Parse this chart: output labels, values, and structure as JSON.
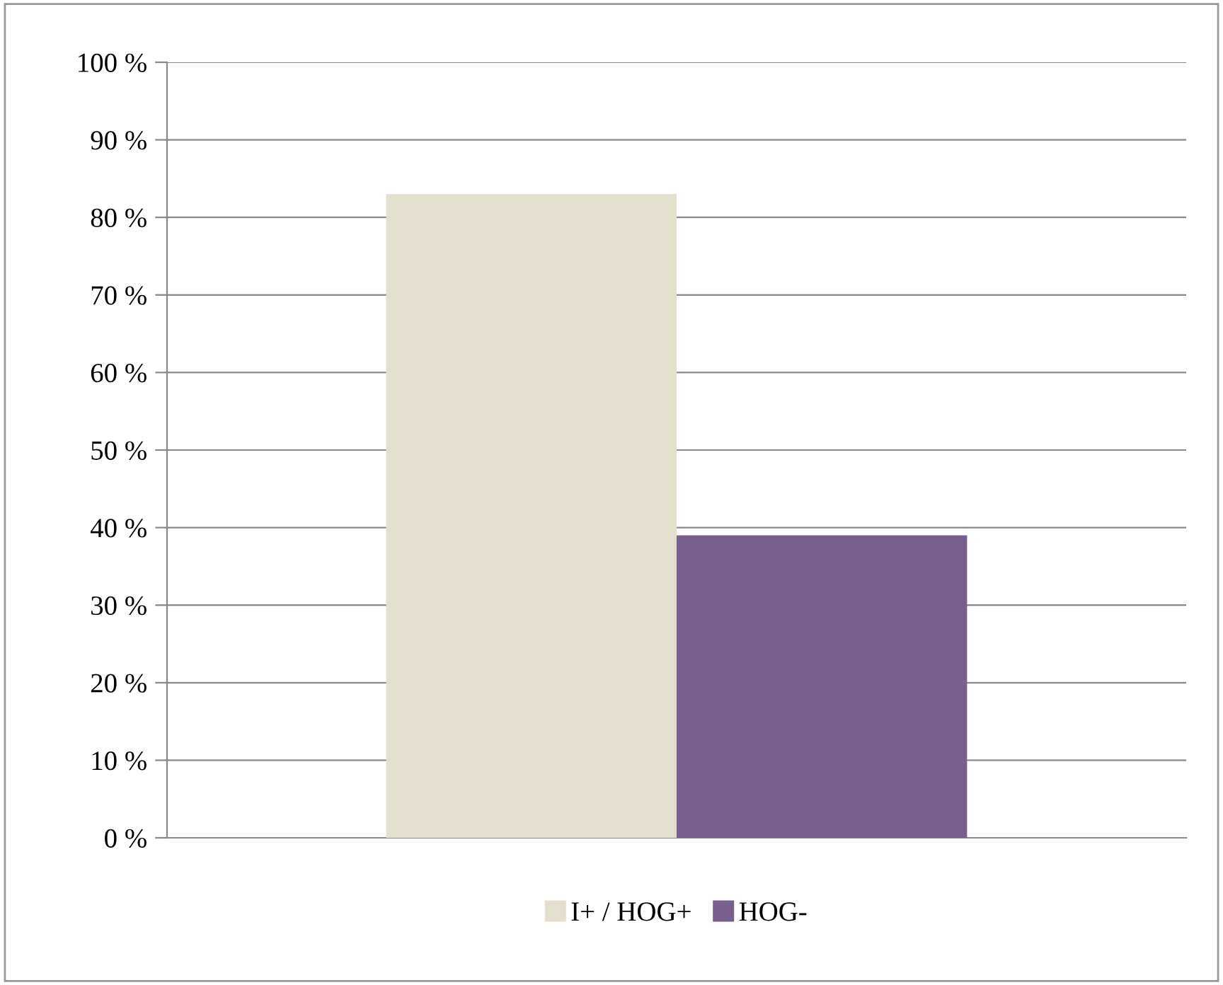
{
  "chart_data": {
    "type": "bar",
    "categories": [
      null
    ],
    "series": [
      {
        "name": "I+ / HOG+",
        "color": "#e2dfcc",
        "values": [
          83
        ]
      },
      {
        "name": "HOG-",
        "color": "#77608e",
        "values": [
          39
        ]
      }
    ],
    "ylim": [
      0,
      100
    ],
    "yticks": [
      {
        "value": 0,
        "label": "0 %"
      },
      {
        "value": 10,
        "label": "10 %"
      },
      {
        "value": 20,
        "label": "20 %"
      },
      {
        "value": 30,
        "label": "30 %"
      },
      {
        "value": 40,
        "label": "40 %"
      },
      {
        "value": 50,
        "label": "50 %"
      },
      {
        "value": 60,
        "label": "60 %"
      },
      {
        "value": 70,
        "label": "70 %"
      },
      {
        "value": 80,
        "label": "80 %"
      },
      {
        "value": 90,
        "label": "90 %"
      },
      {
        "value": 100,
        "label": "100 %"
      }
    ],
    "grid": "y",
    "legend": "bottom"
  }
}
